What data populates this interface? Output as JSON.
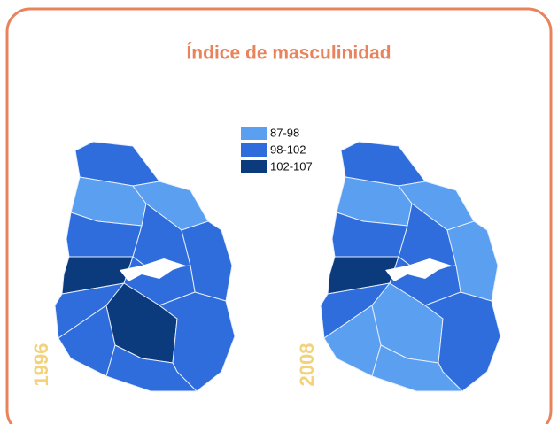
{
  "title": "Índice de masculinidad",
  "legend": {
    "items": [
      {
        "label": "87-98",
        "color": "#5b9ff0"
      },
      {
        "label": "98-102",
        "color": "#2e6ddb"
      },
      {
        "label": "102-107",
        "color": "#0b3a7d"
      }
    ]
  },
  "maps": [
    {
      "label": "1996"
    },
    {
      "label": "2008"
    }
  ]
}
